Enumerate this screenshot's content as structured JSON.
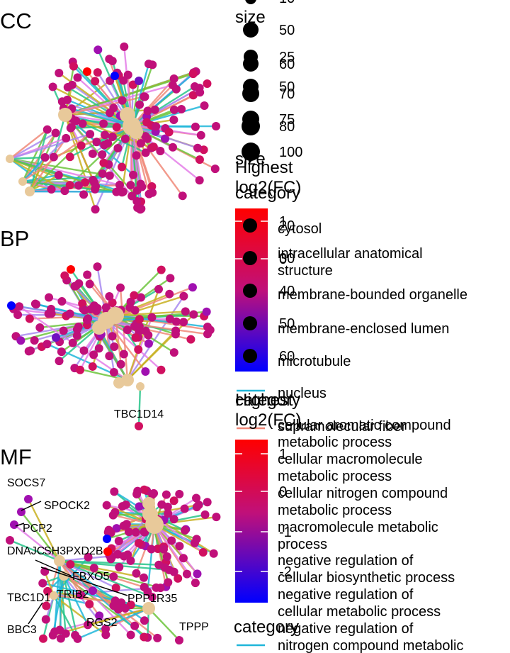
{
  "chart_data": [
    {
      "type": "network",
      "panel": "CC",
      "categories": [
        "cytosol",
        "intracellular anatomical structure",
        "membrane-bounded organelle",
        "membrane-enclosed lumen",
        "microtubule",
        "nucleus",
        "supramolecular fiber"
      ],
      "labeled_genes": []
    },
    {
      "type": "network",
      "panel": "BP",
      "categories": [
        "cellular aromatic compound metabolic process",
        "cellular macromolecule metabolic process",
        "cellular nitrogen compound metabolic process",
        "macromolecule metabolic process",
        "negative regulation of cellular biosynthetic process",
        "negative regulation of cellular metabolic process",
        "negative regulation of nitrogen compound metabolic"
      ],
      "labeled_genes": [
        "TBC1D14"
      ]
    },
    {
      "type": "network",
      "panel": "MF",
      "labeled_genes": [
        "SOCS7",
        "SPOCK2",
        "PCP2",
        "DNAJC",
        "SH3PXD2B",
        "FBXO5",
        "TBC1D1",
        "TRIB2",
        "PPP1R35",
        "BBC3",
        "RGS2",
        "TPPP"
      ]
    }
  ],
  "legends": {
    "size_top": {
      "title": "size",
      "values": [
        "10",
        "50"
      ]
    },
    "size_left": {
      "title": "size",
      "values": [
        "25",
        "50",
        "75",
        "100"
      ]
    },
    "size_right": {
      "values": [
        "60",
        "70",
        "80"
      ]
    },
    "fc_cc": {
      "title": "Highest log2(FC)",
      "ticks": [
        "1",
        "0"
      ]
    },
    "size_bp": {
      "title": "size",
      "values": [
        "20",
        "30",
        "40",
        "50",
        "60"
      ]
    },
    "cat_cc": {
      "title": "category",
      "items": [
        "cytosol",
        "intracellular anatomical structure",
        "membrane-bounded organelle",
        "membrane-enclosed lumen",
        "microtubule",
        "nucleus",
        "supramolecular fiber"
      ]
    },
    "fc_bp": {
      "title": "Highest log2(FC)",
      "ticks": [
        "1",
        "0",
        "-1",
        "-2"
      ]
    },
    "cat_bp": {
      "title": "category",
      "items": [
        "cellular aromatic compound metabolic process",
        "cellular macromolecule metabolic process",
        "cellular nitrogen compound metabolic process",
        "macromolecule metabolic process",
        "negative regulation of cellular biosynthetic process",
        "negative regulation of cellular metabolic process",
        "negative regulation of nitrogen compound metabolic"
      ]
    }
  },
  "colors": {
    "fc_high": "#ff0000",
    "fc_mid": "#c0107a",
    "fc_low": "#0000ff",
    "node_category": "#e8c99a",
    "edges": [
      "#1fb6d9",
      "#f08878",
      "#c8b021",
      "#6cc43c",
      "#e47ee8",
      "#27c48a",
      "#a889f0"
    ]
  }
}
